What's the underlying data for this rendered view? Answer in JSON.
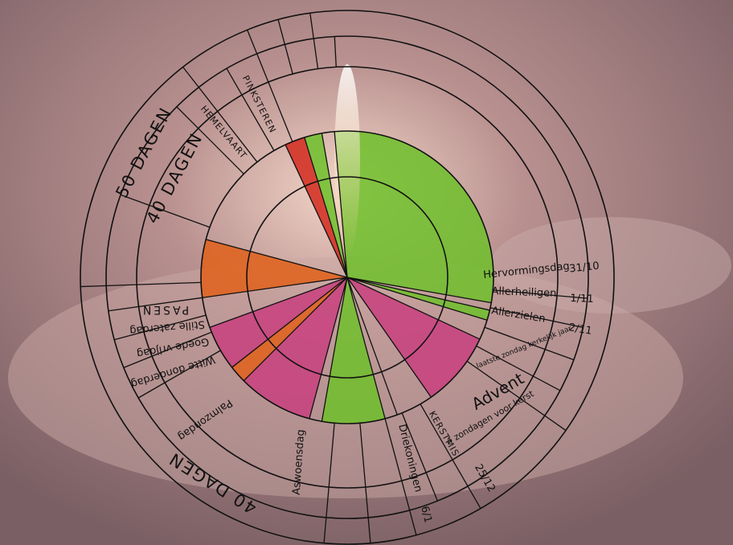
{
  "labels": {
    "days50": "50 DAGEN",
    "days40top": "40 DAGEN",
    "hemelvaart": "HEMELVAART",
    "pinksteren": "PINKSTEREN",
    "hervormingsdag": "Hervormingsdag",
    "hervormingsdag_date": "31/10",
    "allerheiligen": "Allerheiligen",
    "allerheiligen_date": "1/11",
    "allerzielen": "Allerzielen",
    "allerzielen_date": "2/11",
    "laatste_zondag": "laatste zondag kerkelijk jaar",
    "advent": "Advent",
    "advent_sub": "4 zondagen voor kerst",
    "kerstmis": "KERSTMIS",
    "kerstmis_date": "25/12",
    "driekoningen": "Driekoningen",
    "driekoningen_date": "6/1",
    "aswoensdag": "Aswoensdag",
    "days40bottom": "40 DAGEN",
    "palmzondag": "Palmzondag",
    "witte_donderdag": "Witte donderdag",
    "goede_vrijdag": "Goede vrijdag",
    "stille_zaterdag": "Stille zaterdag",
    "pasen": "PASEN"
  }
}
